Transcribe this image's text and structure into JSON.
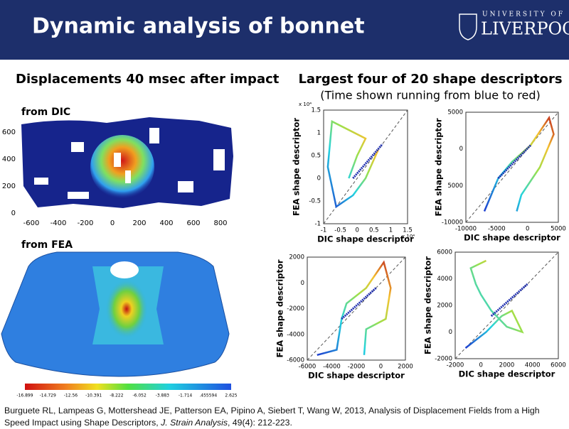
{
  "header": {
    "title": "Dynamic analysis of bonnet",
    "logo": {
      "line1": "UNIVERSITY OF",
      "line2": "LIVERPOOL"
    }
  },
  "left": {
    "heading": "Displacements 40 msec after impact",
    "dic_label": "from DIC",
    "dic_yticks": [
      "600",
      "400",
      "200",
      "0"
    ],
    "dic_xticks": [
      "-600",
      "-400",
      "-200",
      "0",
      "200",
      "400",
      "600",
      "800"
    ],
    "fea_label": "from FEA",
    "colorbar_labels": [
      "-16.899",
      "-14.729",
      "-12.56",
      "-10.391",
      "-8.222",
      "-6.052",
      "-3.883",
      "-1.714",
      ".455594",
      "2.625"
    ]
  },
  "right": {
    "heading": "Largest four of 20 shape descriptors",
    "subheading": "(Time shown running from blue to red)",
    "plots": [
      {
        "ylabel": "FEA shape descriptor",
        "xlabel": "DIC shape descriptor",
        "yticks": [
          "1.5",
          "1",
          "0.5",
          "0",
          "-0.5",
          "-1"
        ],
        "xticks": [
          "-1",
          "-0.5",
          "0",
          "0.5",
          "1",
          "1.5"
        ],
        "ymult": "x 10⁴",
        "xmult": "x 10⁴"
      },
      {
        "ylabel": "FEA shape descriptor",
        "xlabel": "DIC shape descriptor",
        "yticks": [
          "5000",
          "0",
          "5000",
          "-10000"
        ],
        "xticks": [
          "-10000",
          "-5000",
          "0",
          "5000"
        ]
      },
      {
        "ylabel": "FEA shape descriptor",
        "xlabel": "DIC shape descriptor",
        "yticks": [
          "2000",
          "0",
          "-2000",
          "-4000",
          "-6000"
        ],
        "xticks": [
          "-6000",
          "-4000",
          "-2000",
          "0",
          "2000"
        ]
      },
      {
        "ylabel": "FEA shape descriptor",
        "xlabel": "DIC shape descriptor",
        "yticks": [
          "6000",
          "4000",
          "2000",
          "0",
          "-2000"
        ],
        "xticks": [
          "-2000",
          "0",
          "2000",
          "4000",
          "6000"
        ]
      }
    ]
  },
  "citation": {
    "authors": "Burguete RL, Lampeas G, Mottershead JE, Patterson EA, Pipino A, Siebert T, Wang W, 2013, Analysis of Displacement Fields from a High Speed Impact using Shape Descriptors, ",
    "journal": "J. Strain Analysis",
    "ref": ", 49(4): 212-223."
  }
}
